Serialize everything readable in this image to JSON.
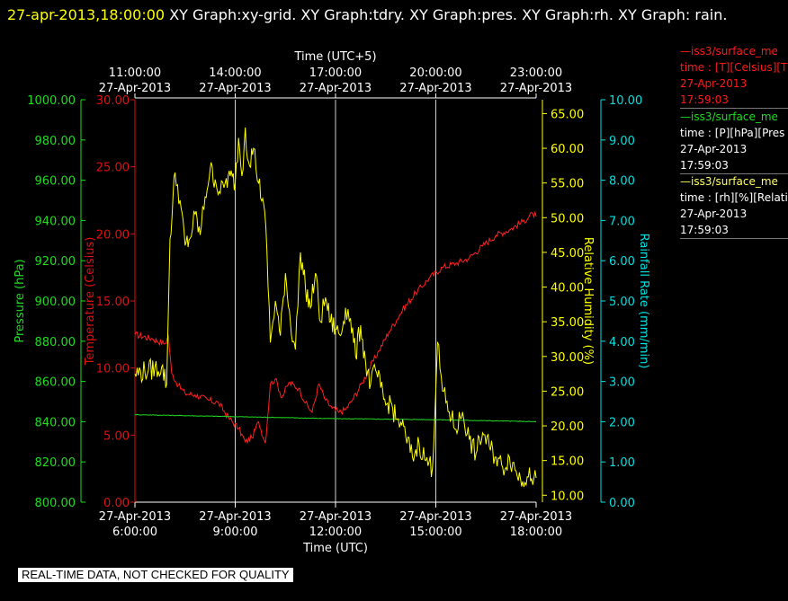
{
  "header": {
    "timestamp": "27-apr-2013,18:00:00",
    "graphs": " XY Graph:xy-grid.  XY Graph:tdry.  XY Graph:pres.  XY Graph:rh.  XY Graph: rain."
  },
  "legend": [
    {
      "name": "iss3/surface_me",
      "var": "time : [T][Celsius][T",
      "date": "27-Apr-2013",
      "time": "17:59:03",
      "color": "#ff1a1a"
    },
    {
      "name": "iss3/surface_me",
      "var": "time : [P][hPa][Pres",
      "date": "27-Apr-2013",
      "time": "17:59:03",
      "color": "#1fdd1f"
    },
    {
      "name": "iss3/surface_me",
      "var": "time : [rh][%][Relati",
      "date": "27-Apr-2013",
      "time": "17:59:03",
      "color": "#ffff66"
    }
  ],
  "disclaimer": "REAL-TIME DATA, NOT CHECKED FOR QUALITY",
  "chart_data": {
    "type": "line",
    "xlabel": "Time (UTC)",
    "top_xlabel": "Time (UTC+5)",
    "xlim_hours": [
      6,
      18
    ],
    "x_ticks_bottom": [
      {
        "hour": 6,
        "date": "27-Apr-2013",
        "time": "6:00:00"
      },
      {
        "hour": 9,
        "date": "27-Apr-2013",
        "time": "9:00:00"
      },
      {
        "hour": 12,
        "date": "27-Apr-2013",
        "time": "12:00:00"
      },
      {
        "hour": 15,
        "date": "27-Apr-2013",
        "time": "15:00:00"
      },
      {
        "hour": 18,
        "date": "27-Apr-2013",
        "time": "18:00:00"
      }
    ],
    "x_ticks_top": [
      {
        "hour": 6,
        "time": "11:00:00",
        "date": "27-Apr-2013"
      },
      {
        "hour": 9,
        "time": "14:00:00",
        "date": "27-Apr-2013"
      },
      {
        "hour": 12,
        "time": "17:00:00",
        "date": "27-Apr-2013"
      },
      {
        "hour": 15,
        "time": "20:00:00",
        "date": "27-Apr-2013"
      },
      {
        "hour": 18,
        "time": "23:00:00",
        "date": "27-Apr-2013"
      }
    ],
    "grid": "vertical lines at 9:00, 12:00, 15:00",
    "axes": [
      {
        "id": "pres",
        "label": "Pressure (hPa)",
        "color": "#1fdd1f",
        "ylim": [
          800,
          1000
        ],
        "ticks": [
          "800.00",
          "820.00",
          "840.00",
          "860.00",
          "880.00",
          "900.00",
          "920.00",
          "940.00",
          "960.00",
          "980.00",
          "1000.00"
        ]
      },
      {
        "id": "temp",
        "label": "Temperature (Celsius)",
        "color": "#e01010",
        "ylim": [
          0,
          30
        ],
        "ticks": [
          "0.00",
          "5.00",
          "10.00",
          "15.00",
          "20.00",
          "25.00",
          "30.00"
        ]
      },
      {
        "id": "rh",
        "label": "Relative Humidity (%)",
        "color": "#ffff00",
        "ylim": [
          9,
          67
        ],
        "ticks": [
          "10.00",
          "15.00",
          "20.00",
          "25.00",
          "30.00",
          "35.00",
          "40.00",
          "45.00",
          "50.00",
          "55.00",
          "60.00",
          "65.00"
        ]
      },
      {
        "id": "rain",
        "label": "Rainfall Rate (mm/min)",
        "color": "#00e0e0",
        "ylim": [
          0,
          10
        ],
        "ticks": [
          "0.00",
          "1.00",
          "2.00",
          "3.00",
          "4.00",
          "5.00",
          "6.00",
          "7.00",
          "8.00",
          "9.00",
          "10.00"
        ]
      }
    ],
    "series": [
      {
        "name": "T",
        "axis": "temp",
        "color": "#ff2020",
        "x": [
          6.0,
          6.5,
          6.9,
          7.0,
          7.1,
          7.3,
          7.5,
          7.8,
          8.2,
          8.5,
          8.8,
          9.1,
          9.3,
          9.5,
          9.7,
          9.9,
          10.05,
          10.2,
          10.4,
          10.6,
          10.9,
          11.1,
          11.3,
          11.5,
          11.7,
          11.9,
          12.1,
          12.3,
          12.5,
          12.8,
          13.0,
          13.3,
          13.6,
          14.0,
          14.4,
          14.8,
          15.2,
          15.6,
          16.0,
          16.4,
          16.8,
          17.2,
          17.6,
          17.9,
          18.0
        ],
        "y": [
          12.5,
          12.2,
          11.8,
          12.4,
          9.6,
          8.7,
          8.1,
          8.0,
          7.6,
          7.4,
          6.3,
          5.5,
          4.5,
          4.8,
          6.0,
          4.4,
          8.8,
          9.2,
          7.8,
          8.9,
          8.5,
          7.4,
          6.7,
          8.8,
          7.6,
          7.0,
          6.7,
          6.9,
          7.6,
          8.9,
          9.9,
          11.3,
          12.7,
          14.3,
          15.6,
          16.7,
          17.5,
          17.8,
          18.2,
          19.1,
          19.9,
          20.3,
          20.9,
          21.5,
          21.3
        ]
      },
      {
        "name": "P",
        "axis": "pres",
        "color": "#1fdd1f",
        "x": [
          6.0,
          9.0,
          12.0,
          15.0,
          18.0
        ],
        "y": [
          843.5,
          842.5,
          841.5,
          841.0,
          840.0
        ]
      },
      {
        "name": "RH",
        "axis": "rh",
        "color": "#ffff00",
        "x": [
          6.0,
          6.4,
          6.8,
          6.95,
          7.05,
          7.2,
          7.35,
          7.5,
          7.65,
          7.8,
          7.95,
          8.1,
          8.25,
          8.4,
          8.55,
          8.7,
          8.85,
          9.0,
          9.1,
          9.2,
          9.3,
          9.4,
          9.55,
          9.7,
          9.85,
          9.95,
          10.05,
          10.2,
          10.35,
          10.5,
          10.65,
          10.8,
          10.95,
          11.1,
          11.25,
          11.4,
          11.55,
          11.7,
          11.85,
          12.0,
          12.15,
          12.3,
          12.45,
          12.6,
          12.75,
          12.9,
          13.05,
          13.2,
          13.35,
          13.5,
          13.65,
          13.8,
          13.95,
          14.1,
          14.3,
          14.5,
          14.7,
          14.9,
          15.05,
          15.2,
          15.4,
          15.6,
          15.8,
          16.0,
          16.2,
          16.4,
          16.6,
          16.8,
          17.0,
          17.2,
          17.4,
          17.6,
          17.8,
          17.9,
          18.0
        ],
        "y": [
          27.5,
          28.0,
          28.5,
          26.0,
          47.0,
          56.5,
          52.5,
          46.0,
          47.0,
          50.5,
          47.5,
          53.0,
          57.0,
          55.5,
          53.5,
          55.0,
          56.0,
          55.0,
          61.5,
          56.0,
          63.0,
          58.0,
          60.0,
          55.0,
          52.0,
          45.0,
          32.0,
          38.0,
          33.0,
          42.0,
          35.0,
          31.0,
          45.0,
          40.0,
          37.0,
          42.0,
          35.0,
          38.5,
          35.0,
          34.0,
          33.0,
          37.0,
          35.5,
          30.0,
          34.5,
          29.0,
          26.0,
          28.0,
          25.5,
          23.0,
          23.5,
          21.0,
          20.5,
          18.5,
          15.5,
          17.5,
          15.0,
          14.0,
          32.0,
          25.0,
          22.0,
          19.5,
          22.0,
          18.0,
          16.0,
          19.0,
          17.0,
          15.5,
          14.0,
          15.5,
          13.5,
          12.0,
          14.0,
          11.5,
          12.5
        ]
      },
      {
        "name": "rain",
        "axis": "rain",
        "color": "#00e0e0",
        "x": [],
        "y": []
      }
    ]
  }
}
